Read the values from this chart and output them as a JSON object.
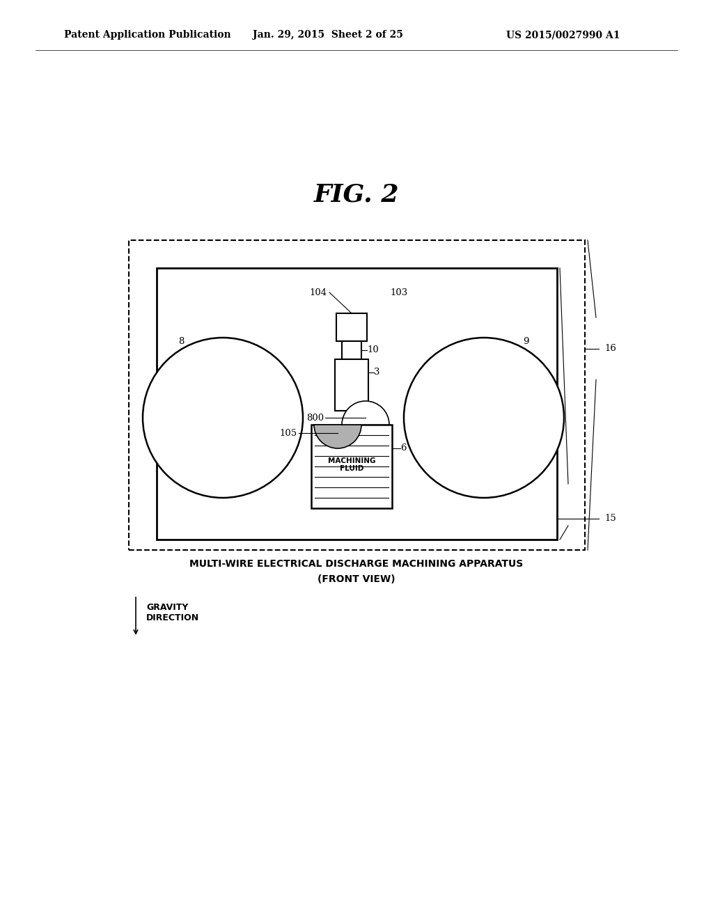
{
  "bg_color": "#ffffff",
  "header_left": "Patent Application Publication",
  "header_mid": "Jan. 29, 2015  Sheet 2 of 25",
  "header_right": "US 2015/0027990 A1",
  "fig_label": "FIG. 2",
  "caption_line1": "MULTI-WIRE ELECTRICAL DISCHARGE MACHINING APPARATUS",
  "caption_line2": "(FRONT VIEW)",
  "gravity_label": "GRAVITY\nDIRECTION"
}
